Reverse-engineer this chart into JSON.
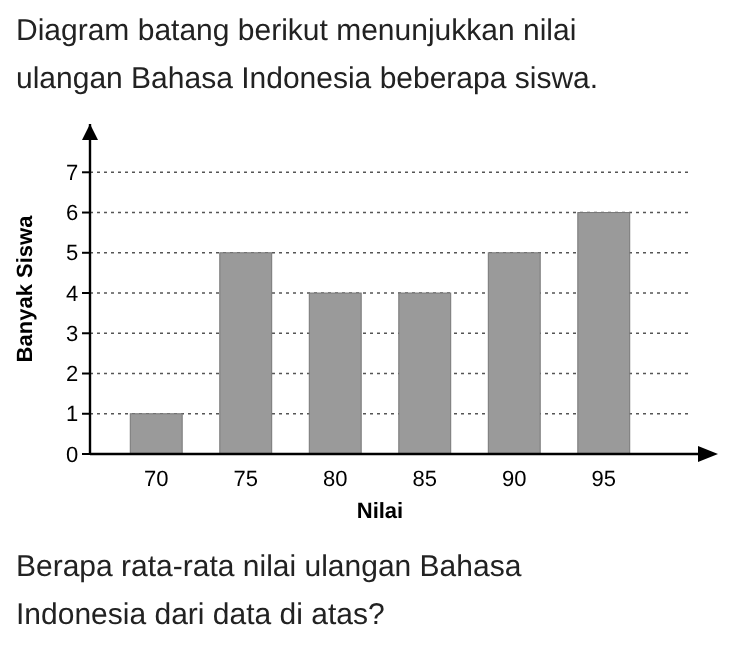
{
  "chart_data": {
    "type": "bar",
    "title": "Diagram batang berikut menunjukkan nilai ulangan Bahasa Indonesia beberapa siswa.",
    "xlabel": "Nilai",
    "ylabel": "Banyak Siswa",
    "categories": [
      "70",
      "75",
      "80",
      "85",
      "90",
      "95"
    ],
    "values": [
      1,
      5,
      4,
      4,
      5,
      6
    ],
    "color": "#9a9a9a",
    "ylim": [
      0,
      8.2
    ],
    "yticks": [
      0,
      1,
      2,
      3,
      4,
      5,
      6,
      7
    ],
    "grid": "y",
    "annotations": [
      "Berapa rata-rata nilai ulangan Bahasa Indonesia dari data di atas?"
    ]
  }
}
